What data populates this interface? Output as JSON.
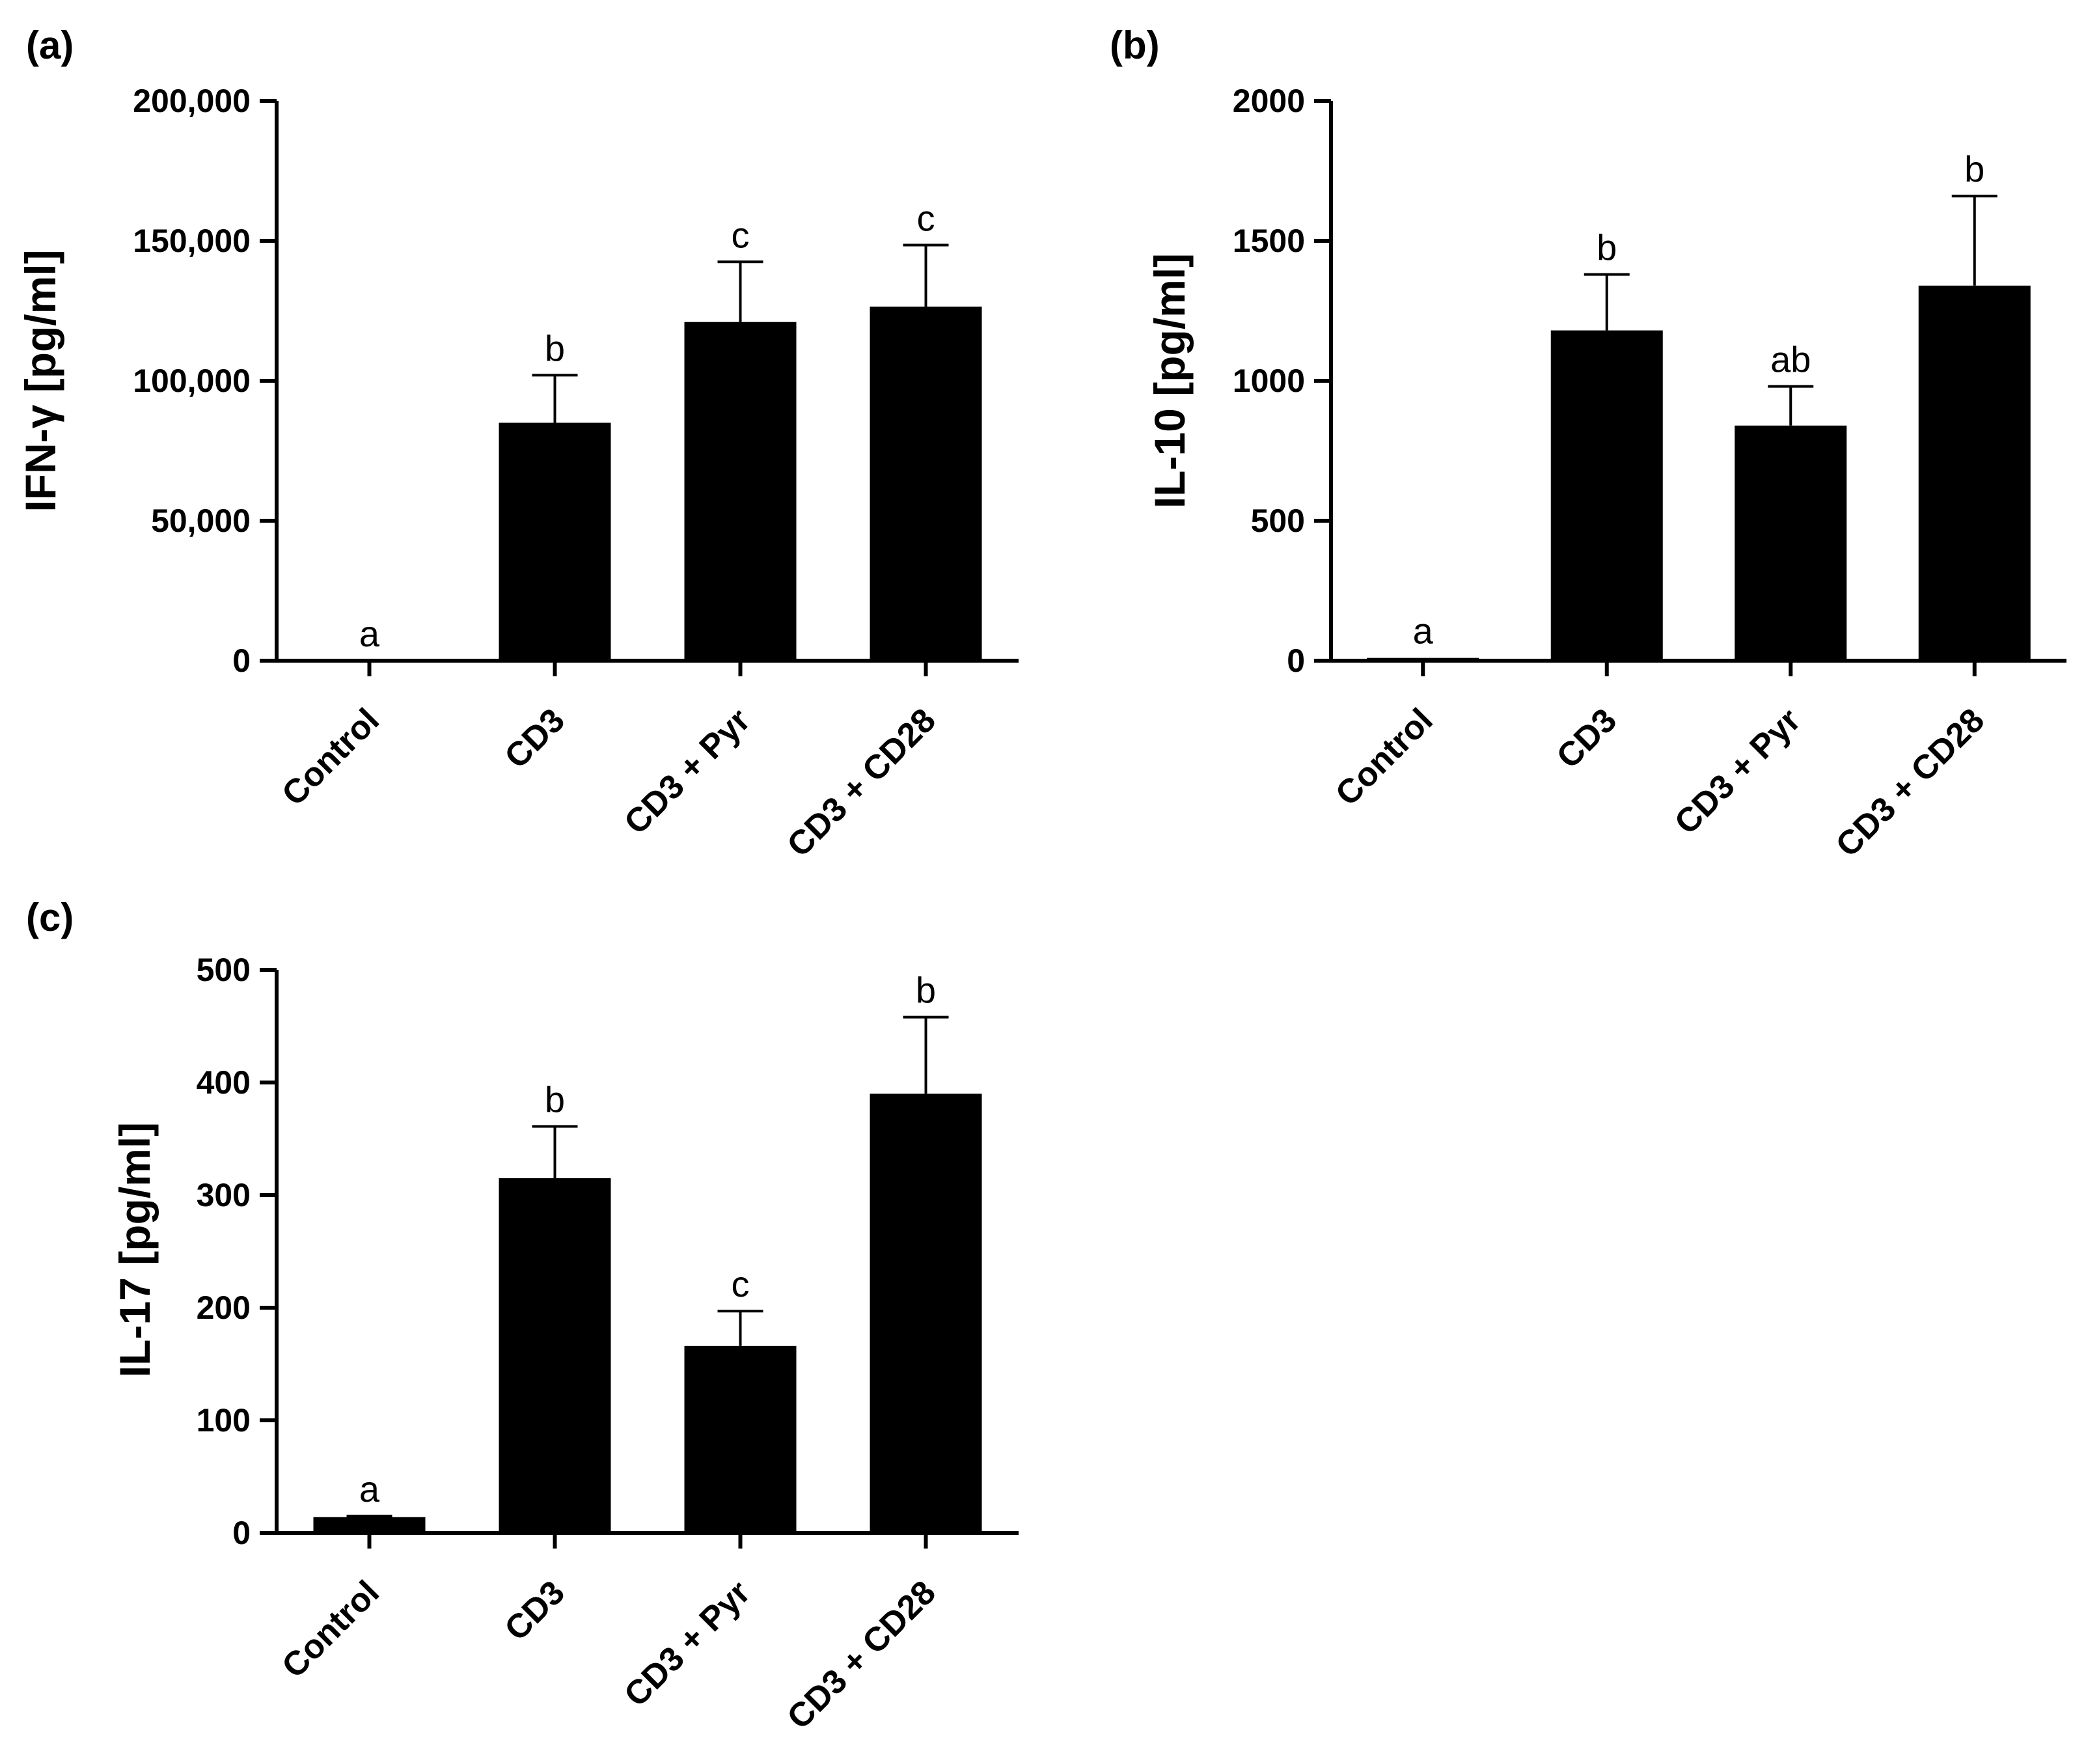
{
  "chart_data": [
    {
      "type": "bar",
      "panel_label": "(a)",
      "ylabel": "IFN-γ [pg/ml]",
      "xlabel": "",
      "ylim": [
        0,
        200000
      ],
      "yticks": [
        0,
        50000,
        100000,
        150000,
        200000
      ],
      "ytick_labels": [
        "0",
        "50,000",
        "100,000",
        "150,000",
        "200,000"
      ],
      "categories": [
        "Control",
        "CD3",
        "CD3 + Pyr",
        "CD3 + CD28"
      ],
      "values": [
        0,
        85000,
        121000,
        126500
      ],
      "errors": [
        0,
        17000,
        21500,
        22000
      ],
      "significance": [
        "a",
        "b",
        "c",
        "c"
      ],
      "grid": false,
      "bar_color": "#000000"
    },
    {
      "type": "bar",
      "panel_label": "(b)",
      "ylabel": "IL-10 [pg/ml]",
      "xlabel": "",
      "ylim": [
        0,
        2000
      ],
      "yticks": [
        0,
        500,
        1000,
        1500,
        2000
      ],
      "ytick_labels": [
        "0",
        "500",
        "1000",
        "1500",
        "2000"
      ],
      "categories": [
        "Control",
        "CD3",
        "CD3 + Pyr",
        "CD3 + CD28"
      ],
      "values": [
        10,
        1180,
        840,
        1340
      ],
      "errors": [
        0,
        200,
        140,
        320
      ],
      "significance": [
        "a",
        "b",
        "ab",
        "b"
      ],
      "grid": false,
      "bar_color": "#000000"
    },
    {
      "type": "bar",
      "panel_label": "(c)",
      "ylabel": "IL-17 [pg/ml]",
      "xlabel": "",
      "ylim": [
        0,
        500
      ],
      "yticks": [
        0,
        100,
        200,
        300,
        400,
        500
      ],
      "ytick_labels": [
        "0",
        "100",
        "200",
        "300",
        "400",
        "500"
      ],
      "categories": [
        "Control",
        "CD3",
        "CD3 + Pyr",
        "CD3 + CD28"
      ],
      "values": [
        14,
        315,
        166,
        390
      ],
      "errors": [
        1,
        46,
        31,
        68
      ],
      "significance": [
        "a",
        "b",
        "c",
        "b"
      ],
      "grid": false,
      "bar_color": "#000000"
    }
  ]
}
